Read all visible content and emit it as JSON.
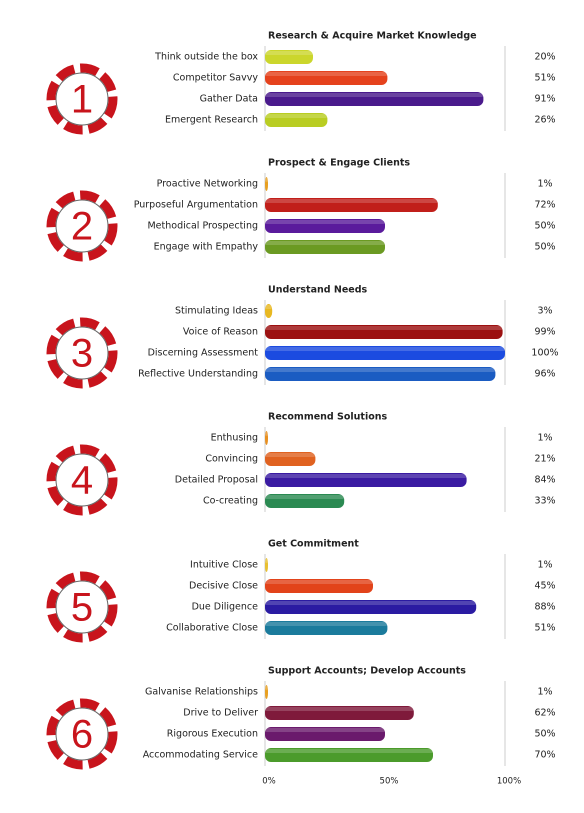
{
  "chart_data": [
    {
      "type": "bar",
      "title": "Research & Acquire Market Knowledge",
      "badge": "1",
      "xlim": [
        0,
        100
      ],
      "categories": [
        "Think outside the box",
        "Competitor Savvy",
        "Gather Data",
        "Emergent Research"
      ],
      "values": [
        20,
        51,
        91,
        26
      ],
      "value_labels": [
        "20%",
        "51%",
        "91%",
        "26%"
      ],
      "colors": [
        "#cbd62c",
        "#e5421d",
        "#4a1a8c",
        "#b9cd22"
      ]
    },
    {
      "type": "bar",
      "title": "Prospect & Engage Clients",
      "badge": "2",
      "xlim": [
        0,
        100
      ],
      "categories": [
        "Proactive Networking",
        "Purposeful Argumentation",
        "Methodical Prospecting",
        "Engage with Empathy"
      ],
      "values": [
        1,
        72,
        50,
        50
      ],
      "value_labels": [
        "1%",
        "72%",
        "50%",
        "50%"
      ],
      "colors": [
        "#e8a021",
        "#c11f1a",
        "#5a1b9c",
        "#6b9a22"
      ]
    },
    {
      "type": "bar",
      "title": "Understand Needs",
      "badge": "3",
      "xlim": [
        0,
        100
      ],
      "categories": [
        "Stimulating Ideas",
        "Voice of Reason",
        "Discerning Assessment",
        "Reflective Understanding"
      ],
      "values": [
        3,
        99,
        100,
        96
      ],
      "value_labels": [
        "3%",
        "99%",
        "100%",
        "96%"
      ],
      "colors": [
        "#e8b821",
        "#9c1111",
        "#1b4be0",
        "#1b5cc2"
      ]
    },
    {
      "type": "bar",
      "title": "Recommend Solutions",
      "badge": "4",
      "xlim": [
        0,
        100
      ],
      "categories": [
        "Enthusing",
        "Convincing",
        "Detailed Proposal",
        "Co-creating"
      ],
      "values": [
        1,
        21,
        84,
        33
      ],
      "value_labels": [
        "1%",
        "21%",
        "84%",
        "33%"
      ],
      "colors": [
        "#e89021",
        "#e06220",
        "#3a1ba2",
        "#2b8a52"
      ]
    },
    {
      "type": "bar",
      "title": "Get Commitment",
      "badge": "5",
      "xlim": [
        0,
        100
      ],
      "categories": [
        "Intuitive Close",
        "Decisive Close",
        "Due Diligence",
        "Collaborative Close"
      ],
      "values": [
        1,
        45,
        88,
        51
      ],
      "value_labels": [
        "1%",
        "45%",
        "88%",
        "51%"
      ],
      "colors": [
        "#e8c031",
        "#e2431a",
        "#2a1ba2",
        "#1b7b9c"
      ]
    },
    {
      "type": "bar",
      "title": "Support Accounts; Develop Accounts",
      "badge": "6",
      "xlim": [
        0,
        100
      ],
      "categories": [
        "Galvanise Relationships",
        "Drive to Deliver",
        "Rigorous Execution",
        "Accommodating Service"
      ],
      "values": [
        1,
        62,
        50,
        70
      ],
      "value_labels": [
        "1%",
        "62%",
        "50%",
        "70%"
      ],
      "colors": [
        "#e8a021",
        "#7f1a3b",
        "#6a1a6c",
        "#4b9b2b"
      ],
      "xticks": [
        {
          "value": 0,
          "label": "0%"
        },
        {
          "value": 50,
          "label": "50%"
        },
        {
          "value": 100,
          "label": "100%"
        }
      ]
    }
  ]
}
